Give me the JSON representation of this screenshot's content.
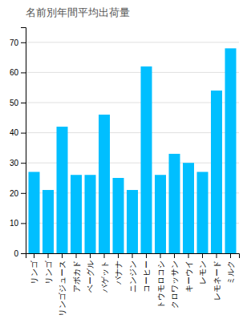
{
  "chart_data": {
    "type": "bar",
    "title": "名前別年間平均出荷量",
    "categories": [
      "リンゴ",
      "リンゴ",
      "リンゴジュース",
      "アボカド",
      "ベーグル",
      "バゲット",
      "バナナ",
      "ニンジン",
      "コーヒー",
      "トウモロコシ",
      "クロワッサン",
      "キーウイ",
      "レモン",
      "レモネード",
      "ミルク"
    ],
    "values": [
      27,
      21,
      42,
      26,
      26,
      46,
      25,
      21,
      62,
      26,
      33,
      30,
      27,
      54,
      68
    ],
    "color": "#00bfff",
    "ylim": [
      0,
      75
    ],
    "yticks": [
      0,
      10,
      20,
      30,
      40,
      50,
      60,
      70
    ],
    "grid": true
  }
}
